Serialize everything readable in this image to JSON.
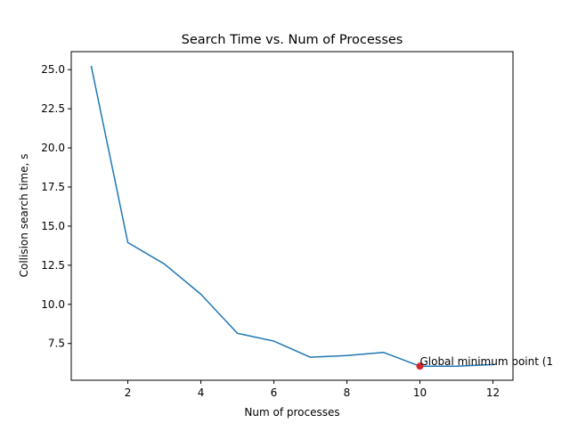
{
  "chart_data": {
    "type": "line",
    "title": "Search Time vs. Num of Processes",
    "xlabel": "Num of processes",
    "ylabel": "Collision search time, s",
    "xlim": [
      0.45,
      12.55
    ],
    "ylim": [
      5.15,
      26.15
    ],
    "xticks": [
      2,
      4,
      6,
      8,
      10,
      12
    ],
    "xtick_labels": [
      "2",
      "4",
      "6",
      "8",
      "10",
      "12"
    ],
    "yticks": [
      7.5,
      10.0,
      12.5,
      15.0,
      17.5,
      20.0,
      22.5,
      25.0
    ],
    "ytick_labels": [
      "7.5",
      "10.0",
      "12.5",
      "15.0",
      "17.5",
      "20.0",
      "22.5",
      "25.0"
    ],
    "grid": false,
    "series": [
      {
        "x": [
          1,
          2,
          3,
          4,
          5,
          6,
          7,
          8,
          9,
          10,
          11,
          12
        ],
        "values": [
          25.2,
          13.95,
          12.58,
          10.65,
          8.15,
          7.65,
          6.62,
          6.73,
          6.93,
          6.05,
          6.05,
          6.15
        ],
        "color": "#1f77b4"
      }
    ],
    "highlight_point": {
      "x": 10,
      "y": 6.05,
      "color": "#d62728",
      "label": "Global minimum point (1"
    }
  }
}
